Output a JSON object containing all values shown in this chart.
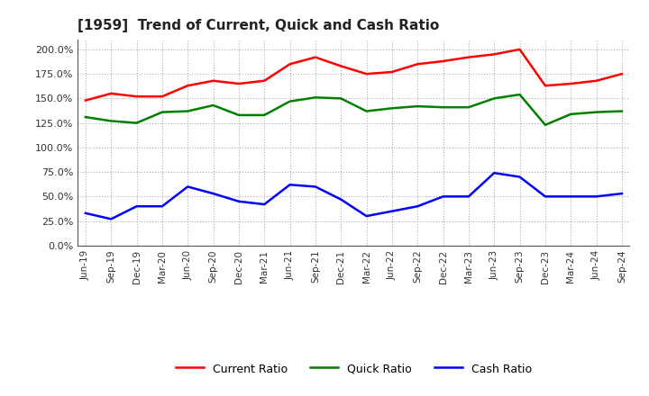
{
  "title": "[1959]  Trend of Current, Quick and Cash Ratio",
  "labels": [
    "Jun-19",
    "Sep-19",
    "Dec-19",
    "Mar-20",
    "Jun-20",
    "Sep-20",
    "Dec-20",
    "Mar-21",
    "Jun-21",
    "Sep-21",
    "Dec-21",
    "Mar-22",
    "Jun-22",
    "Sep-22",
    "Dec-22",
    "Mar-23",
    "Jun-23",
    "Sep-23",
    "Dec-23",
    "Mar-24",
    "Jun-24",
    "Sep-24"
  ],
  "current_ratio": [
    148,
    155,
    152,
    152,
    163,
    168,
    165,
    168,
    185,
    192,
    183,
    175,
    177,
    185,
    188,
    192,
    195,
    200,
    163,
    165,
    168,
    175
  ],
  "quick_ratio": [
    131,
    127,
    125,
    136,
    137,
    143,
    133,
    133,
    147,
    151,
    150,
    137,
    140,
    142,
    141,
    141,
    150,
    154,
    123,
    134,
    136,
    137
  ],
  "cash_ratio": [
    33,
    27,
    40,
    40,
    60,
    53,
    45,
    42,
    62,
    60,
    47,
    30,
    35,
    40,
    50,
    50,
    74,
    70,
    50,
    50,
    50,
    53
  ],
  "current_color": "#ff0000",
  "quick_color": "#008000",
  "cash_color": "#0000ff",
  "bg_color": "#ffffff",
  "grid_color": "#999999",
  "ylim": [
    0,
    210
  ],
  "yticks": [
    0,
    25,
    50,
    75,
    100,
    125,
    150,
    175,
    200
  ],
  "legend_labels": [
    "Current Ratio",
    "Quick Ratio",
    "Cash Ratio"
  ]
}
